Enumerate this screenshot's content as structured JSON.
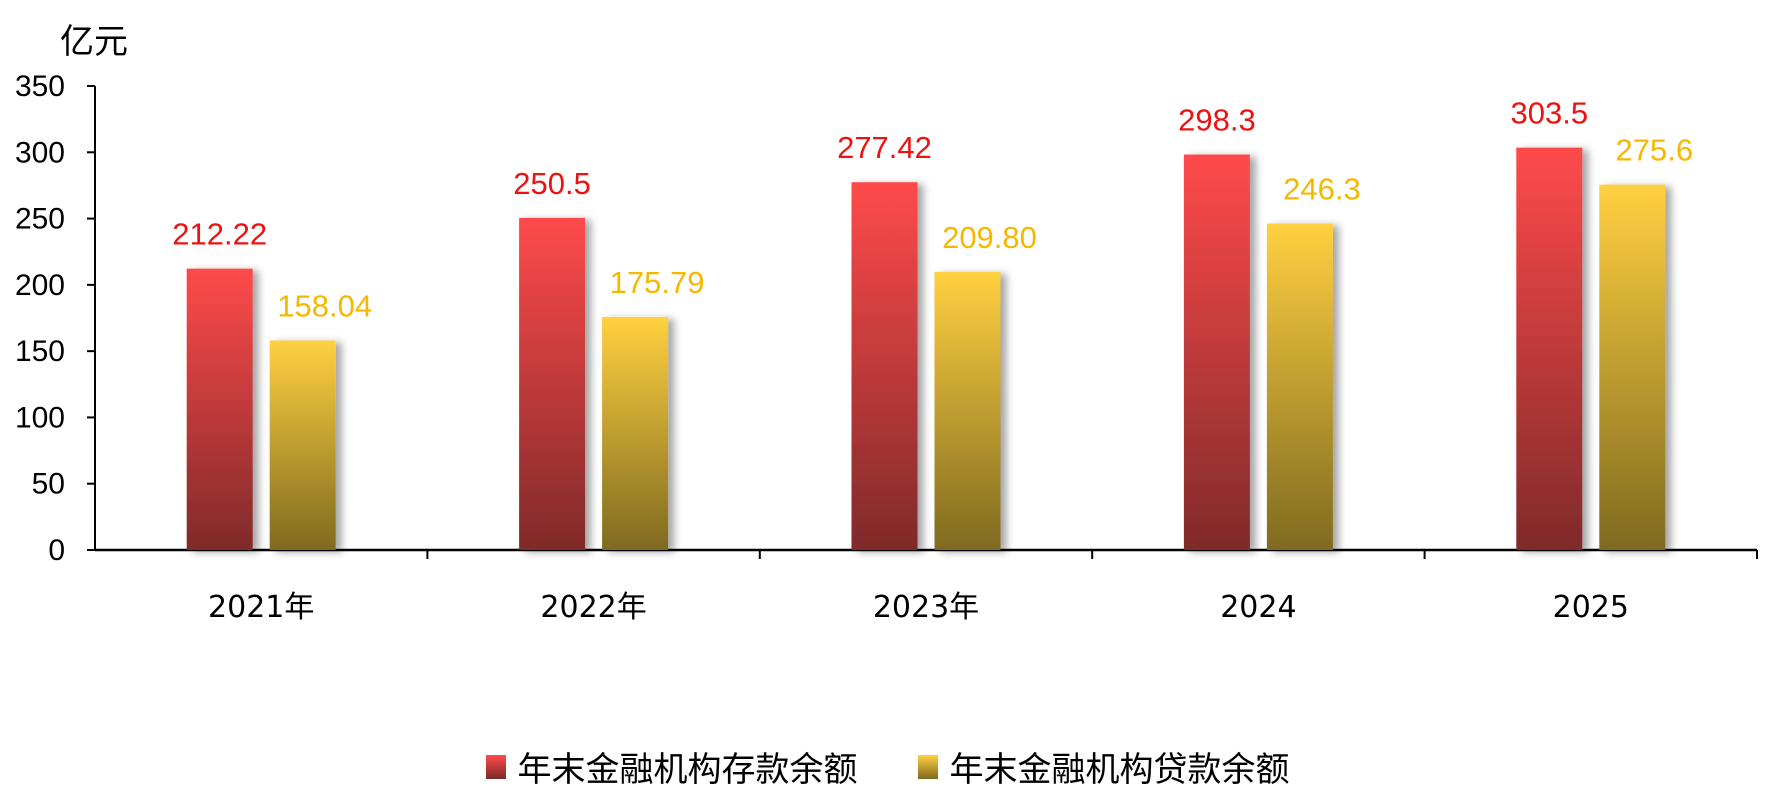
{
  "chart_data": {
    "type": "bar",
    "unit_label": "亿元",
    "categories": [
      "2021年",
      "2022年",
      "2023年",
      "2024",
      "2025"
    ],
    "series": [
      {
        "name": "年末金融机构存款余额",
        "values": [
          212.22,
          250.5,
          277.42,
          298.3,
          303.5
        ],
        "labels": [
          "212.22",
          "250.5",
          "277.42",
          "298.3",
          "303.5"
        ]
      },
      {
        "name": "年末金融机构贷款余额",
        "values": [
          158.04,
          175.79,
          209.8,
          246.3,
          275.6
        ],
        "labels": [
          "158.04",
          "175.79",
          "209.80",
          "246.3",
          "275.6"
        ]
      }
    ],
    "ylim": [
      0,
      350
    ],
    "yticks": [
      0,
      50,
      100,
      150,
      200,
      250,
      300,
      350
    ],
    "grid": false,
    "legend_position": "bottom",
    "colors": {
      "series1_top": "#ff4a4a",
      "series1_bottom": "#7f2a2a",
      "series1_label": "#ee1111",
      "series2_top": "#ffd040",
      "series2_bottom": "#7f6a20",
      "series2_label": "#f5b800"
    }
  }
}
